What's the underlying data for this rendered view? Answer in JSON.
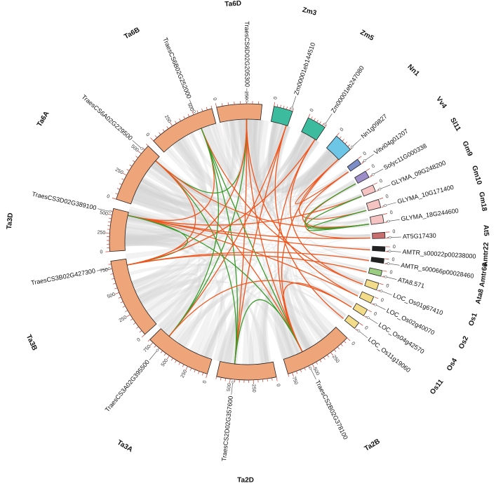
{
  "chart_data": {
    "type": "circos",
    "title": "",
    "chromosomes": [
      {
        "name": "Ta6D",
        "length": 380,
        "color": "#EFA57A"
      },
      {
        "name": "Zm3",
        "length": 60,
        "color": "#3DBB9E"
      },
      {
        "name": "Zm5",
        "length": 60,
        "color": "#3DBB9E"
      },
      {
        "name": "Nn1",
        "length": 50,
        "color": "#6EC6E6"
      },
      {
        "name": "Vv4",
        "length": 8,
        "color": "#7B8CC6"
      },
      {
        "name": "Sl11",
        "length": 10,
        "color": "#9D8EC9"
      },
      {
        "name": "Gm9",
        "length": 10,
        "color": "#F6C3C3"
      },
      {
        "name": "Gm10",
        "length": 10,
        "color": "#F6C3C3"
      },
      {
        "name": "Gm18",
        "length": 10,
        "color": "#F6C3C3"
      },
      {
        "name": "At5",
        "length": 8,
        "color": "#C86E6E"
      },
      {
        "name": "Amtr22",
        "length": 8,
        "color": "#222222"
      },
      {
        "name": "Amtr66",
        "length": 8,
        "color": "#222222"
      },
      {
        "name": "Ata8",
        "length": 8,
        "color": "#9ACD80"
      },
      {
        "name": "Os1",
        "length": 10,
        "color": "#F2DC8A"
      },
      {
        "name": "Os2",
        "length": 10,
        "color": "#F2DC8A"
      },
      {
        "name": "Os4",
        "length": 10,
        "color": "#F2DC8A"
      },
      {
        "name": "Os11",
        "length": 10,
        "color": "#F2DC8A"
      },
      {
        "name": "Ta2B",
        "length": 800,
        "color": "#EFA57A"
      },
      {
        "name": "Ta2D",
        "length": 650,
        "color": "#EFA57A"
      },
      {
        "name": "Ta3A",
        "length": 800,
        "color": "#EFA57A"
      },
      {
        "name": "Ta3B",
        "length": 830,
        "color": "#EFA57A"
      },
      {
        "name": "Ta3D",
        "length": 590,
        "color": "#EFA57A"
      },
      {
        "name": "Ta6A",
        "length": 600,
        "color": "#EFA57A"
      },
      {
        "name": "Ta6B",
        "length": 700,
        "color": "#EFA57A"
      }
    ],
    "genes": [
      {
        "name": "TraesCS6D02G205300",
        "chrom": "Ta6D",
        "pos": 250
      },
      {
        "name": "Zm00001eb144510",
        "chrom": "Zm3",
        "pos": 55
      },
      {
        "name": "Zm00001eb247080",
        "chrom": "Zm5",
        "pos": 55
      },
      {
        "name": "Nn1g09827",
        "chrom": "Nn1",
        "pos": 48
      },
      {
        "name": "Vitvi04g01207",
        "chrom": "Vv4",
        "pos": 7
      },
      {
        "name": "Solyc11G000338",
        "chrom": "Sl11",
        "pos": 9
      },
      {
        "name": "GLYMA_09G248200",
        "chrom": "Gm9",
        "pos": 9
      },
      {
        "name": "GLYMA_10G171400",
        "chrom": "Gm10",
        "pos": 9
      },
      {
        "name": "GLYMA_18G244600",
        "chrom": "Gm18",
        "pos": 9
      },
      {
        "name": "AT5G17430",
        "chrom": "At5",
        "pos": 7
      },
      {
        "name": "AMTR_s00022p00238000",
        "chrom": "Amtr22",
        "pos": 7
      },
      {
        "name": "AMTR_s00066p00028460",
        "chrom": "Amtr66",
        "pos": 7
      },
      {
        "name": "ATA8.571",
        "chrom": "Ata8",
        "pos": 7
      },
      {
        "name": "LOC_Os01g67410",
        "chrom": "Os1",
        "pos": 9
      },
      {
        "name": "LOC_Os02g40070",
        "chrom": "Os2",
        "pos": 9
      },
      {
        "name": "LOC_Os04g42570",
        "chrom": "Os4",
        "pos": 9
      },
      {
        "name": "LOC_Os11g19060",
        "chrom": "Os11",
        "pos": 9
      },
      {
        "name": "TraesCS2B02G378100",
        "chrom": "Ta2B",
        "pos": 540
      },
      {
        "name": "TraesCS2D02G357600",
        "chrom": "Ta2D",
        "pos": 470
      },
      {
        "name": "TraesCS3A02G395500",
        "chrom": "Ta3A",
        "pos": 650
      },
      {
        "name": "TraesCS3B02G427300",
        "chrom": "Ta3B",
        "pos": 760
      },
      {
        "name": "TraesCS3D02G389100",
        "chrom": "Ta3D",
        "pos": 540
      },
      {
        "name": "TraesCS6A02G229500",
        "chrom": "Ta6A",
        "pos": 540
      },
      {
        "name": "TraesCS6B02G252000",
        "chrom": "Ta6B",
        "pos": 520
      }
    ],
    "links": [
      {
        "from": [
          "Ta6D",
          250
        ],
        "to": [
          "Ta2D",
          470
        ],
        "color": "#F0561E"
      },
      {
        "from": [
          "Ta6D",
          250
        ],
        "to": [
          "Ta3A",
          650
        ],
        "color": "#3A9A2A"
      },
      {
        "from": [
          "Ta6D",
          250
        ],
        "to": [
          "Ta6A",
          540
        ],
        "color": "#3A9A2A"
      },
      {
        "from": [
          "Ta6D",
          250
        ],
        "to": [
          "Ta3B",
          760
        ],
        "color": "#F0561E"
      },
      {
        "from": [
          "Ta6D",
          250
        ],
        "to": [
          "Ta2B",
          540
        ],
        "color": "#F0561E"
      },
      {
        "from": [
          "Ta6B",
          520
        ],
        "to": [
          "Ta2D",
          470
        ],
        "color": "#3A9A2A"
      },
      {
        "from": [
          "Ta6B",
          520
        ],
        "to": [
          "Ta2B",
          540
        ],
        "color": "#3A9A2A"
      },
      {
        "from": [
          "Ta6B",
          520
        ],
        "to": [
          "Ta3D",
          540
        ],
        "color": "#F0561E"
      },
      {
        "from": [
          "Ta6B",
          520
        ],
        "to": [
          "Os1",
          9
        ],
        "color": "#F0561E"
      },
      {
        "from": [
          "Ta6A",
          540
        ],
        "to": [
          "Ta2B",
          540
        ],
        "color": "#F0561E"
      },
      {
        "from": [
          "Ta6A",
          540
        ],
        "to": [
          "Ta2D",
          470
        ],
        "color": "#3A9A2A"
      },
      {
        "from": [
          "Ta6A",
          540
        ],
        "to": [
          "Gm18",
          9
        ],
        "color": "#F0561E"
      },
      {
        "from": [
          "Ta3D",
          540
        ],
        "to": [
          "Ta3B",
          760
        ],
        "color": "#3A9A2A"
      },
      {
        "from": [
          "Ta3D",
          540
        ],
        "to": [
          "At5",
          7
        ],
        "color": "#F0561E"
      },
      {
        "from": [
          "Ta3D",
          540
        ],
        "to": [
          "Amtr22",
          7
        ],
        "color": "#F0561E"
      },
      {
        "from": [
          "Ta3D",
          540
        ],
        "to": [
          "Os2",
          9
        ],
        "color": "#F0561E"
      },
      {
        "from": [
          "Ta3D",
          540
        ],
        "to": [
          "Gm9",
          9
        ],
        "color": "#F0561E"
      },
      {
        "from": [
          "Ta3D",
          540
        ],
        "to": [
          "Ta2B",
          540
        ],
        "color": "#3A9A2A"
      },
      {
        "from": [
          "Ta3B",
          760
        ],
        "to": [
          "Amtr66",
          7
        ],
        "color": "#F0561E"
      },
      {
        "from": [
          "Ta3B",
          760
        ],
        "to": [
          "Ata8",
          7
        ],
        "color": "#F0561E"
      },
      {
        "from": [
          "Ta3B",
          760
        ],
        "to": [
          "Zm5",
          55
        ],
        "color": "#F0561E"
      },
      {
        "from": [
          "Ta3A",
          650
        ],
        "to": [
          "Zm3",
          55
        ],
        "color": "#F0561E"
      },
      {
        "from": [
          "Ta3A",
          650
        ],
        "to": [
          "Ta6B",
          520
        ],
        "color": "#3A9A2A"
      },
      {
        "from": [
          "Ta2D",
          470
        ],
        "to": [
          "Zm3",
          55
        ],
        "color": "#F0561E"
      },
      {
        "from": [
          "Ta2D",
          470
        ],
        "to": [
          "Ta2B",
          540
        ],
        "color": "#3A9A2A"
      },
      {
        "from": [
          "Ta2B",
          540
        ],
        "to": [
          "Zm5",
          55
        ],
        "color": "#F0561E"
      },
      {
        "from": [
          "Ta2B",
          540
        ],
        "to": [
          "Nn1",
          48
        ],
        "color": "#F0561E"
      },
      {
        "from": [
          "Ta2B",
          540
        ],
        "to": [
          "Os4",
          9
        ],
        "color": "#F0561E"
      },
      {
        "from": [
          "Zm3",
          55
        ],
        "to": [
          "Os11",
          9
        ],
        "color": "#F0561E"
      },
      {
        "from": [
          "Zm5",
          55
        ],
        "to": [
          "Os1",
          9
        ],
        "color": "#F0561E"
      },
      {
        "from": [
          "Nn1",
          48
        ],
        "to": [
          "Vv4",
          7
        ],
        "color": "#F0561E"
      },
      {
        "from": [
          "Nn1",
          48
        ],
        "to": [
          "Gm10",
          9
        ],
        "color": "#F0561E"
      },
      {
        "from": [
          "Vv4",
          7
        ],
        "to": [
          "Gm18",
          9
        ],
        "color": "#F0561E"
      },
      {
        "from": [
          "Sl11",
          9
        ],
        "to": [
          "At5",
          7
        ],
        "color": "#F0561E"
      },
      {
        "from": [
          "Gm9",
          9
        ],
        "to": [
          "Gm18",
          9
        ],
        "color": "#3A9A2A"
      },
      {
        "from": [
          "Gm10",
          9
        ],
        "to": [
          "Gm18",
          9
        ],
        "color": "#3A9A2A"
      },
      {
        "from": [
          "Sl11",
          9
        ],
        "to": [
          "Gm18",
          9
        ],
        "color": "#3A9A2A"
      },
      {
        "from": [
          "Ta6D",
          250
        ],
        "to": [
          "Os2",
          9
        ],
        "color": "#F0561E"
      },
      {
        "from": [
          "Ta6A",
          540
        ],
        "to": [
          "Ta3B",
          760
        ],
        "color": "#F0561E"
      },
      {
        "from": [
          "Ta3A",
          650
        ],
        "to": [
          "Os4",
          9
        ],
        "color": "#F0561E"
      }
    ],
    "tick_labels": [
      "0",
      "250",
      "500",
      "750"
    ]
  }
}
